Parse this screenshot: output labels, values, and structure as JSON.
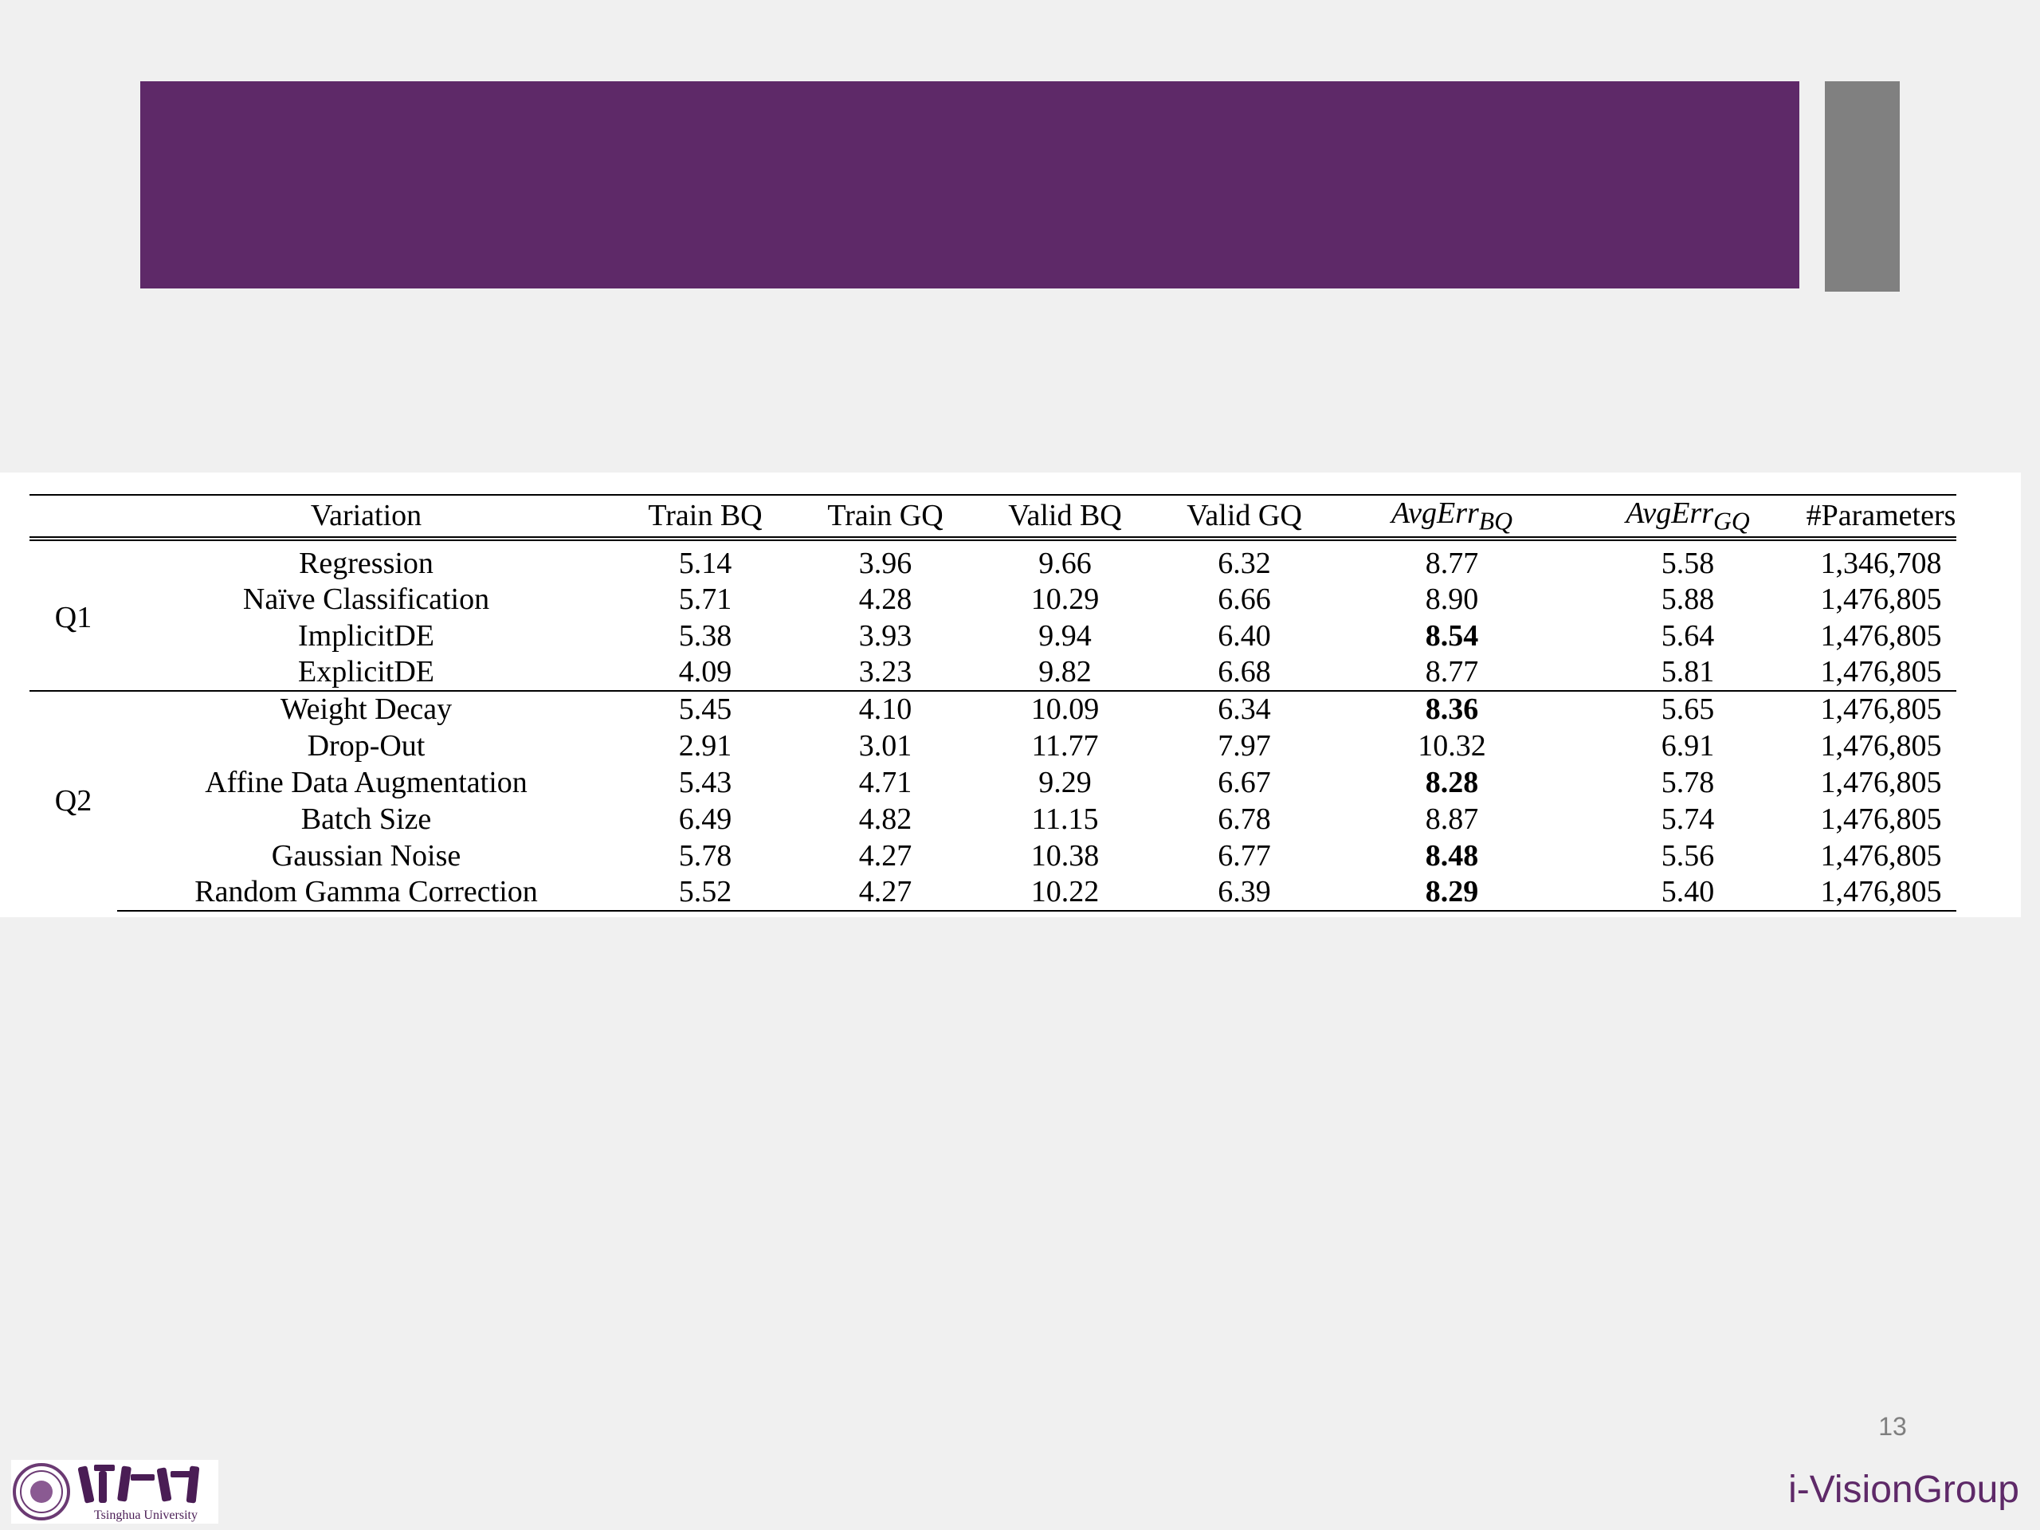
{
  "slide": {
    "page_number": "13",
    "brand": "i-VisionGroup",
    "logo_text": "Tsinghua University",
    "logo_chinese": "清華大学"
  },
  "colors": {
    "title_bar": "#5e2968",
    "side_block": "#808080",
    "background": "#f0f0f0",
    "brand_text": "#5e2968",
    "page_number_text": "#7f7f7f"
  },
  "table": {
    "headers": {
      "variation": "Variation",
      "train_bq": "Train BQ",
      "train_gq": "Train GQ",
      "valid_bq": "Valid BQ",
      "valid_gq": "Valid GQ",
      "avg_err_bq_main": "AvgErr",
      "avg_err_bq_sub": "BQ",
      "avg_err_gq_main": "AvgErr",
      "avg_err_gq_sub": "GQ",
      "parameters": "#Parameters"
    },
    "groups": [
      {
        "label": "Q1",
        "rows": [
          {
            "variation": "Regression",
            "train_bq": "5.14",
            "train_gq": "3.96",
            "valid_bq": "9.66",
            "valid_gq": "6.32",
            "avg_err_bq": "8.77",
            "avg_err_gq": "5.58",
            "parameters": "1,346,708",
            "avg_err_bq_bold": false
          },
          {
            "variation": "Naïve Classification",
            "train_bq": "5.71",
            "train_gq": "4.28",
            "valid_bq": "10.29",
            "valid_gq": "6.66",
            "avg_err_bq": "8.90",
            "avg_err_gq": "5.88",
            "parameters": "1,476,805",
            "avg_err_bq_bold": false
          },
          {
            "variation": "ImplicitDE",
            "train_bq": "5.38",
            "train_gq": "3.93",
            "valid_bq": "9.94",
            "valid_gq": "6.40",
            "avg_err_bq": "8.54",
            "avg_err_gq": "5.64",
            "parameters": "1,476,805",
            "avg_err_bq_bold": true
          },
          {
            "variation": "ExplicitDE",
            "train_bq": "4.09",
            "train_gq": "3.23",
            "valid_bq": "9.82",
            "valid_gq": "6.68",
            "avg_err_bq": "8.77",
            "avg_err_gq": "5.81",
            "parameters": "1,476,805",
            "avg_err_bq_bold": false
          }
        ]
      },
      {
        "label": "Q2",
        "rows": [
          {
            "variation": "Weight Decay",
            "train_bq": "5.45",
            "train_gq": "4.10",
            "valid_bq": "10.09",
            "valid_gq": "6.34",
            "avg_err_bq": "8.36",
            "avg_err_gq": "5.65",
            "parameters": "1,476,805",
            "avg_err_bq_bold": true
          },
          {
            "variation": "Drop-Out",
            "train_bq": "2.91",
            "train_gq": "3.01",
            "valid_bq": "11.77",
            "valid_gq": "7.97",
            "avg_err_bq": "10.32",
            "avg_err_gq": "6.91",
            "parameters": "1,476,805",
            "avg_err_bq_bold": false
          },
          {
            "variation": "Affine Data Augmentation",
            "train_bq": "5.43",
            "train_gq": "4.71",
            "valid_bq": "9.29",
            "valid_gq": "6.67",
            "avg_err_bq": "8.28",
            "avg_err_gq": "5.78",
            "parameters": "1,476,805",
            "avg_err_bq_bold": true
          },
          {
            "variation": "Batch Size",
            "train_bq": "6.49",
            "train_gq": "4.82",
            "valid_bq": "11.15",
            "valid_gq": "6.78",
            "avg_err_bq": "8.87",
            "avg_err_gq": "5.74",
            "parameters": "1,476,805",
            "avg_err_bq_bold": false
          },
          {
            "variation": "Gaussian Noise",
            "train_bq": "5.78",
            "train_gq": "4.27",
            "valid_bq": "10.38",
            "valid_gq": "6.77",
            "avg_err_bq": "8.48",
            "avg_err_gq": "5.56",
            "parameters": "1,476,805",
            "avg_err_bq_bold": true
          },
          {
            "variation": "Random Gamma Correction",
            "train_bq": "5.52",
            "train_gq": "4.27",
            "valid_bq": "10.22",
            "valid_gq": "6.39",
            "avg_err_bq": "8.29",
            "avg_err_gq": "5.40",
            "parameters": "1,476,805",
            "avg_err_bq_bold": true
          }
        ]
      }
    ]
  }
}
